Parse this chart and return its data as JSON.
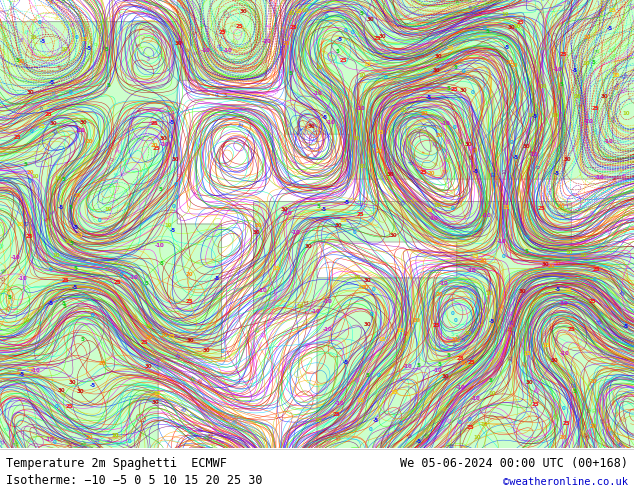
{
  "title_left": "Temperature 2m Spaghetti  ECMWF",
  "title_right": "We 05-06-2024 00:00 UTC (00+168)",
  "legend_label": "Isotherme: −10 −5 0 5 10 15 20 25 30",
  "credit": "©weatheronline.co.uk",
  "background_color": "#ffffff",
  "land_color": "#ccffcc",
  "ocean_color": "#ffffff",
  "coast_color": "#888888",
  "text_color": "#000000",
  "credit_color": "#0000cc",
  "bottom_bar_height": 42,
  "fig_width": 6.34,
  "fig_height": 4.9,
  "dpi": 100,
  "font_size_title": 8.5,
  "font_size_legend": 8.5,
  "font_size_credit": 7.5,
  "isotherm_values": [
    -10,
    -5,
    0,
    5,
    10,
    15,
    20,
    25,
    30
  ],
  "n_members": 48,
  "member_colors": [
    "#ff00ff",
    "#0000ff",
    "#00ccff",
    "#00cc00",
    "#cccc00",
    "#ffaa00",
    "#ff6600",
    "#ff0000",
    "#cc00cc",
    "#ff00ff",
    "#0088ff",
    "#00ffcc",
    "#88cc00",
    "#ff8800",
    "#ff4400",
    "#dd0000",
    "#aa00aa",
    "#4400ff",
    "#00aaff",
    "#00ff88",
    "#aaff00",
    "#ffcc00",
    "#ff5500",
    "#ee0000",
    "#880088",
    "#2200ff",
    "#0066ff",
    "#00ffaa",
    "#66ff00",
    "#ffaa00",
    "#ff3300",
    "#cc0000",
    "#990099",
    "#6600ff",
    "#0044ff",
    "#44ffcc",
    "#44ff00",
    "#ff9900",
    "#ff2200",
    "#bb0000",
    "#770077",
    "#8800ff",
    "#0022ff",
    "#00ffdd",
    "#22ff00",
    "#ff8800",
    "#ff1100",
    "#aa0000"
  ],
  "label_fontsize": 4,
  "map_seed": 777
}
